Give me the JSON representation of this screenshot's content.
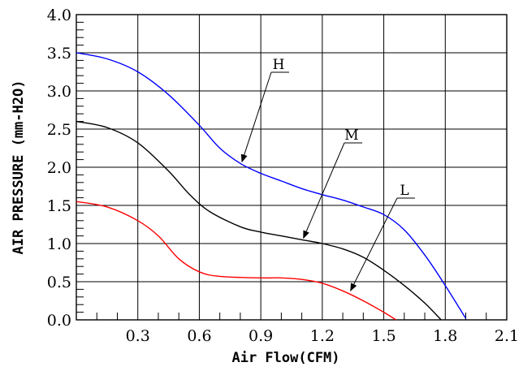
{
  "chart_data": {
    "type": "line",
    "title": "",
    "xlabel": "Air Flow(CFM)",
    "ylabel": "AIR PRESSURE (mm-H2O)",
    "xlim": [
      0,
      2.1
    ],
    "ylim": [
      0,
      4.0
    ],
    "x_ticks": [
      "0.3",
      "0.6",
      "0.9",
      "1.2",
      "1.5",
      "1.8",
      "2.1"
    ],
    "y_ticks": [
      "0.0",
      "0.5",
      "1.0",
      "1.5",
      "2.0",
      "2.5",
      "3.0",
      "3.5",
      "4.0"
    ],
    "grid": true,
    "series": [
      {
        "name": "H",
        "color": "#0000ff",
        "points": [
          [
            0,
            3.5
          ],
          [
            0.15,
            3.42
          ],
          [
            0.3,
            3.25
          ],
          [
            0.45,
            2.95
          ],
          [
            0.6,
            2.55
          ],
          [
            0.7,
            2.25
          ],
          [
            0.8,
            2.05
          ],
          [
            0.9,
            1.92
          ],
          [
            1.0,
            1.82
          ],
          [
            1.1,
            1.72
          ],
          [
            1.2,
            1.64
          ],
          [
            1.3,
            1.57
          ],
          [
            1.4,
            1.48
          ],
          [
            1.5,
            1.38
          ],
          [
            1.6,
            1.18
          ],
          [
            1.7,
            0.85
          ],
          [
            1.8,
            0.45
          ],
          [
            1.9,
            0.02
          ]
        ]
      },
      {
        "name": "M",
        "color": "#000000",
        "points": [
          [
            0,
            2.6
          ],
          [
            0.15,
            2.52
          ],
          [
            0.3,
            2.32
          ],
          [
            0.45,
            1.95
          ],
          [
            0.55,
            1.65
          ],
          [
            0.65,
            1.42
          ],
          [
            0.8,
            1.22
          ],
          [
            0.9,
            1.15
          ],
          [
            1.0,
            1.1
          ],
          [
            1.1,
            1.05
          ],
          [
            1.2,
            1.0
          ],
          [
            1.3,
            0.93
          ],
          [
            1.4,
            0.82
          ],
          [
            1.5,
            0.65
          ],
          [
            1.6,
            0.45
          ],
          [
            1.7,
            0.22
          ],
          [
            1.78,
            0.0
          ]
        ]
      },
      {
        "name": "L",
        "color": "#ff0000",
        "points": [
          [
            0,
            1.55
          ],
          [
            0.15,
            1.48
          ],
          [
            0.3,
            1.3
          ],
          [
            0.4,
            1.1
          ],
          [
            0.5,
            0.8
          ],
          [
            0.6,
            0.63
          ],
          [
            0.7,
            0.57
          ],
          [
            0.9,
            0.55
          ],
          [
            1.0,
            0.55
          ],
          [
            1.1,
            0.53
          ],
          [
            1.2,
            0.48
          ],
          [
            1.3,
            0.38
          ],
          [
            1.4,
            0.25
          ],
          [
            1.5,
            0.1
          ],
          [
            1.56,
            0.0
          ]
        ]
      }
    ],
    "annotations": [
      {
        "label": "H",
        "series": "H",
        "target": [
          0.8,
          2.05
        ]
      },
      {
        "label": "M",
        "series": "M",
        "target": [
          1.1,
          1.05
        ]
      },
      {
        "label": "L",
        "series": "L",
        "target": [
          1.33,
          0.36
        ]
      }
    ]
  },
  "origin_label": "0.0"
}
